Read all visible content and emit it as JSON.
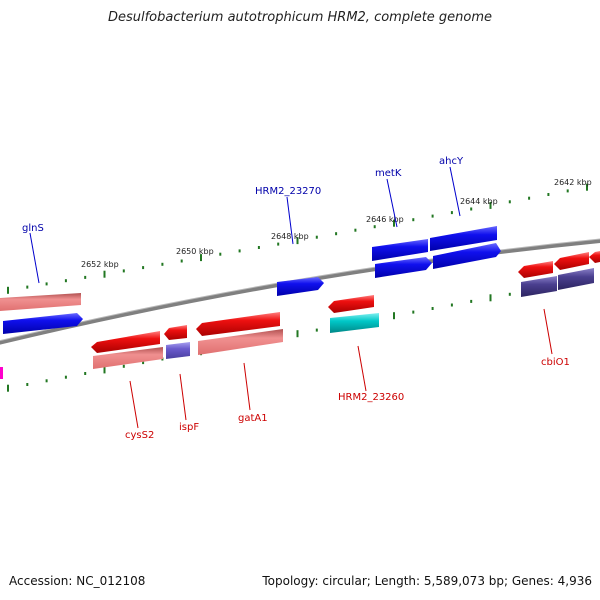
{
  "title": "Desulfobacterium autotrophicum HRM2, complete genome",
  "footer": {
    "accession": "Accession: NC_012108",
    "summary": "Topology: circular; Length: 5,589,073 bp; Genes: 4,936"
  },
  "colors": {
    "forward_cds": "#0000ee",
    "reverse_cds": "#ee0000",
    "reverse_light": "#f08080",
    "cyan": "#00c8c8",
    "purple": "#4a3f8f",
    "backbone": "#888888",
    "tick": "#227722",
    "label_blue": "#0000aa",
    "label_red": "#cc0000"
  },
  "tick_labels": [
    "2652 kbp",
    "2650 kbp",
    "2648 kbp",
    "2646 kbp",
    "2644 kbp",
    "2642 kbp"
  ],
  "gene_labels": {
    "top": [
      "glnS",
      "HRM2_23270",
      "metK",
      "ahcY"
    ],
    "bottom": [
      "cysS2",
      "ispF",
      "gatA1",
      "HRM2_23260",
      "cbiO1"
    ]
  }
}
